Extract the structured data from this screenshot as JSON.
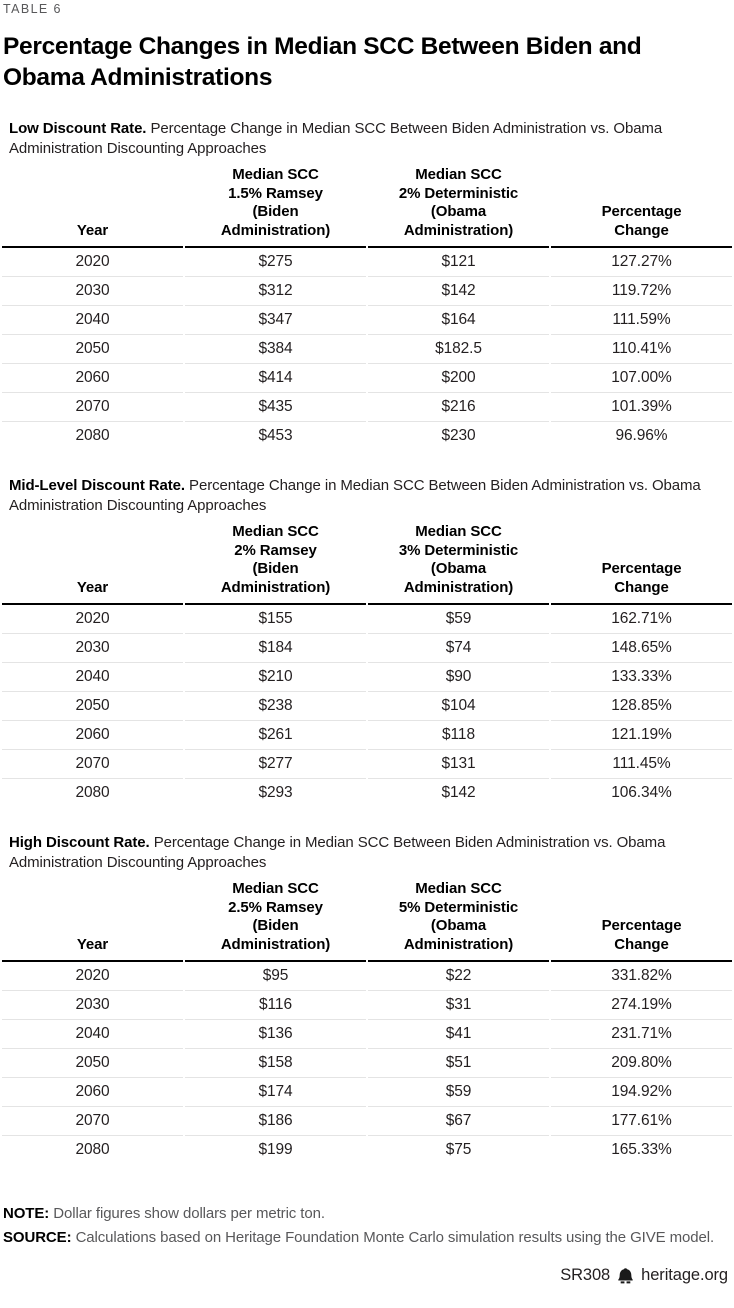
{
  "page": {
    "kicker": "TABLE 6",
    "title": "Percentage Changes in Median SCC Between Biden and Obama Administrations"
  },
  "colors": {
    "text_dark": "#231f20",
    "text_gray": "#58585a",
    "header_rule": "#000000",
    "row_rule": "#e4e4e4",
    "background": "#ffffff"
  },
  "tables": [
    {
      "section_label": "Low Discount Rate.",
      "section_desc": "Percentage Change in Median SCC Between Biden Administration vs. Obama Administration Discounting Approaches",
      "columns": [
        "Year",
        "Median SCC\n1.5% Ramsey\n(Biden\nAdministration)",
        "Median SCC\n2% Deterministic\n(Obama\nAdministration)",
        "Percentage\nChange"
      ],
      "rows": [
        [
          "2020",
          "$275",
          "$121",
          "127.27%"
        ],
        [
          "2030",
          "$312",
          "$142",
          "119.72%"
        ],
        [
          "2040",
          "$347",
          "$164",
          "111.59%"
        ],
        [
          "2050",
          "$384",
          "$182.5",
          "110.41%"
        ],
        [
          "2060",
          "$414",
          "$200",
          "107.00%"
        ],
        [
          "2070",
          "$435",
          "$216",
          "101.39%"
        ],
        [
          "2080",
          "$453",
          "$230",
          "96.96%"
        ]
      ]
    },
    {
      "section_label": "Mid-Level Discount Rate.",
      "section_desc": "Percentage Change in Median SCC Between Biden Administration vs. Obama Administration Discounting Approaches",
      "columns": [
        "Year",
        "Median SCC\n2% Ramsey\n(Biden\nAdministration)",
        "Median SCC\n3% Deterministic\n(Obama\nAdministration)",
        "Percentage\nChange"
      ],
      "rows": [
        [
          "2020",
          "$155",
          "$59",
          "162.71%"
        ],
        [
          "2030",
          "$184",
          "$74",
          "148.65%"
        ],
        [
          "2040",
          "$210",
          "$90",
          "133.33%"
        ],
        [
          "2050",
          "$238",
          "$104",
          "128.85%"
        ],
        [
          "2060",
          "$261",
          "$118",
          "121.19%"
        ],
        [
          "2070",
          "$277",
          "$131",
          "111.45%"
        ],
        [
          "2080",
          "$293",
          "$142",
          "106.34%"
        ]
      ]
    },
    {
      "section_label": "High Discount Rate.",
      "section_desc": "Percentage Change in Median SCC Between Biden Administration vs. Obama Administration Discounting Approaches",
      "columns": [
        "Year",
        "Median SCC\n2.5% Ramsey\n(Biden\nAdministration)",
        "Median SCC\n5% Deterministic\n(Obama\nAdministration)",
        "Percentage\nChange"
      ],
      "rows": [
        [
          "2020",
          "$95",
          "$22",
          "331.82%"
        ],
        [
          "2030",
          "$116",
          "$31",
          "274.19%"
        ],
        [
          "2040",
          "$136",
          "$41",
          "231.71%"
        ],
        [
          "2050",
          "$158",
          "$51",
          "209.80%"
        ],
        [
          "2060",
          "$174",
          "$59",
          "194.92%"
        ],
        [
          "2070",
          "$186",
          "$67",
          "177.61%"
        ],
        [
          "2080",
          "$199",
          "$75",
          "165.33%"
        ]
      ]
    }
  ],
  "chart_data": [
    {
      "type": "table",
      "title": "Low Discount Rate. Percentage Change in Median SCC Between Biden Administration vs. Obama Administration Discounting Approaches",
      "categories": [
        2020,
        2030,
        2040,
        2050,
        2060,
        2070,
        2080
      ],
      "series": [
        {
          "name": "Median SCC 1.5% Ramsey (Biden Administration)",
          "values": [
            275,
            312,
            347,
            384,
            414,
            435,
            453
          ]
        },
        {
          "name": "Median SCC 2% Deterministic (Obama Administration)",
          "values": [
            121,
            142,
            164,
            182.5,
            200,
            216,
            230
          ]
        },
        {
          "name": "Percentage Change",
          "values": [
            127.27,
            119.72,
            111.59,
            110.41,
            107.0,
            101.39,
            96.96
          ]
        }
      ]
    },
    {
      "type": "table",
      "title": "Mid-Level Discount Rate. Percentage Change in Median SCC Between Biden Administration vs. Obama Administration Discounting Approaches",
      "categories": [
        2020,
        2030,
        2040,
        2050,
        2060,
        2070,
        2080
      ],
      "series": [
        {
          "name": "Median SCC 2% Ramsey (Biden Administration)",
          "values": [
            155,
            184,
            210,
            238,
            261,
            277,
            293
          ]
        },
        {
          "name": "Median SCC 3% Deterministic (Obama Administration)",
          "values": [
            59,
            74,
            90,
            104,
            118,
            131,
            142
          ]
        },
        {
          "name": "Percentage Change",
          "values": [
            162.71,
            148.65,
            133.33,
            128.85,
            121.19,
            111.45,
            106.34
          ]
        }
      ]
    },
    {
      "type": "table",
      "title": "High Discount Rate. Percentage Change in Median SCC Between Biden Administration vs. Obama Administration Discounting Approaches",
      "categories": [
        2020,
        2030,
        2040,
        2050,
        2060,
        2070,
        2080
      ],
      "series": [
        {
          "name": "Median SCC 2.5% Ramsey (Biden Administration)",
          "values": [
            95,
            116,
            136,
            158,
            174,
            186,
            199
          ]
        },
        {
          "name": "Median SCC 5% Deterministic (Obama Administration)",
          "values": [
            22,
            31,
            41,
            51,
            59,
            67,
            75
          ]
        },
        {
          "name": "Percentage Change",
          "values": [
            331.82,
            274.19,
            231.71,
            209.8,
            194.92,
            177.61,
            165.33
          ]
        }
      ]
    }
  ],
  "footnotes": {
    "note_label": "NOTE:",
    "note_text": "Dollar figures show dollars per metric ton.",
    "source_label": "SOURCE:",
    "source_text": "Calculations based on Heritage Foundation Monte Carlo simulation results using the GIVE model."
  },
  "footer": {
    "report_code": "SR308",
    "site": "heritage.org"
  }
}
